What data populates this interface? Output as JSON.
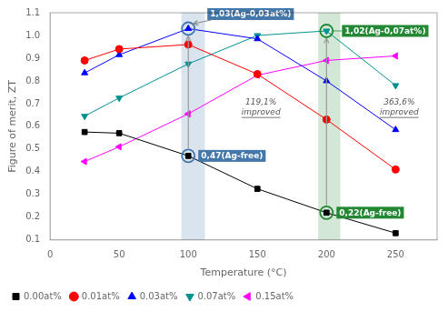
{
  "chart_data": {
    "type": "line",
    "xlabel": "Temperature (°C)",
    "ylabel": "Figure of merit, ZT",
    "xlim": [
      0,
      280
    ],
    "ylim": [
      0.1,
      1.1
    ],
    "xticks": [
      0,
      50,
      100,
      150,
      200,
      250
    ],
    "yticks": [
      0.1,
      0.2,
      0.3,
      0.4,
      0.5,
      0.6,
      0.7,
      0.8,
      0.9,
      {
        "value": 1.0,
        "label": "1.0"
      },
      1.1
    ],
    "grid": false,
    "legend": "lower left",
    "series": [
      {
        "name": "0.00at%",
        "color": "black",
        "marker": "square",
        "x": [
          25,
          50,
          100,
          150,
          200,
          250
        ],
        "values": [
          0.575,
          0.57,
          0.47,
          0.325,
          0.22,
          0.13
        ]
      },
      {
        "name": "0.01at%",
        "color": "red",
        "marker": "circle",
        "x": [
          25,
          50,
          100,
          150,
          200,
          250
        ],
        "values": [
          0.89,
          0.94,
          0.96,
          0.83,
          0.63,
          0.41
        ]
      },
      {
        "name": "0.03at%",
        "color": "blue",
        "marker": "triangle-up",
        "x": [
          25,
          50,
          100,
          150,
          200,
          250
        ],
        "values": [
          0.835,
          0.915,
          1.03,
          0.985,
          0.8,
          0.585
        ]
      },
      {
        "name": "0.07at%",
        "color": "#009090",
        "marker": "triangle-down",
        "x": [
          25,
          50,
          100,
          150,
          200,
          250
        ],
        "values": [
          0.645,
          0.725,
          0.875,
          1.0,
          1.02,
          0.78
        ]
      },
      {
        "name": "0.15at%",
        "color": "magenta",
        "marker": "triangle-left",
        "x": [
          25,
          50,
          100,
          150,
          200,
          250
        ],
        "values": [
          0.445,
          0.51,
          0.655,
          0.825,
          0.89,
          0.91
        ]
      }
    ],
    "highlights": [
      {
        "band": [
          95,
          112
        ],
        "x": 100,
        "low": 0.47,
        "high": 1.03,
        "low_label": "0,47(Ag-free)",
        "high_label": "1,03(Ag-0,03at%)",
        "improved": "119,1%\nimproved",
        "color": "#4477aa"
      },
      {
        "band": [
          194,
          210
        ],
        "x": 200,
        "low": 0.22,
        "high": 1.02,
        "low_label": "0,22(Ag-free)",
        "high_label": "1,02(Ag-0,07at%)",
        "improved": "363,6%\nimproved",
        "color": "#228833"
      }
    ]
  }
}
